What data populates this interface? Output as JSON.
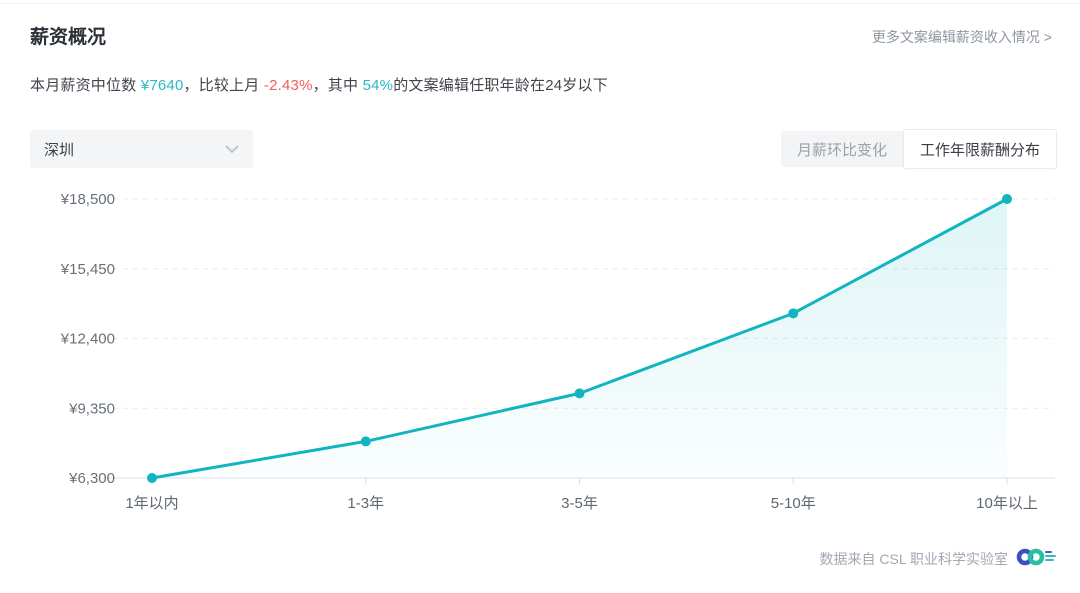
{
  "header": {
    "title": "薪资概况",
    "more_link": "更多文案编辑薪资收入情况 >"
  },
  "summary": {
    "prefix": "本月薪资中位数 ",
    "median_value": "¥7640",
    "mid1": "，比较上月 ",
    "delta_value": "-2.43%",
    "mid2": "，其中 ",
    "percent_value": "54%",
    "suffix": "的文案编辑任职年龄在24岁以下"
  },
  "controls": {
    "city_select": {
      "value": "深圳"
    },
    "tabs": [
      {
        "label": "月薪环比变化",
        "active": false
      },
      {
        "label": "工作年限薪酬分布",
        "active": true
      }
    ]
  },
  "chart_data": {
    "type": "line",
    "title": "工作年限薪酬分布",
    "categories": [
      "1年以内",
      "1-3年",
      "3-5年",
      "5-10年",
      "10年以上"
    ],
    "values": [
      6300,
      7900,
      10000,
      13500,
      18500
    ],
    "y_ticks": [
      6300,
      9350,
      12400,
      15450,
      18500
    ],
    "y_tick_labels": [
      "¥6,300",
      "¥9,350",
      "¥12,400",
      "¥15,450",
      "¥18,500"
    ],
    "ylim": [
      6300,
      18500
    ],
    "xlabel": "",
    "ylabel": "",
    "grid": "dashed-horizontal",
    "legend": "none",
    "line_color": "#12b4bf",
    "area_fill_top": "rgba(18,180,191,0.14)",
    "area_fill_bottom": "rgba(18,180,191,0.02)"
  },
  "footer": {
    "source": "数据来自 CSL 职业科学实验室"
  },
  "colors": {
    "accent_teal": "#12b4bf",
    "negative_red": "#f05e5e",
    "text_dark": "#2c3138",
    "text_secondary": "#8f96a0",
    "grid_line": "#e9ebee",
    "axis_line": "#dde2e7"
  }
}
